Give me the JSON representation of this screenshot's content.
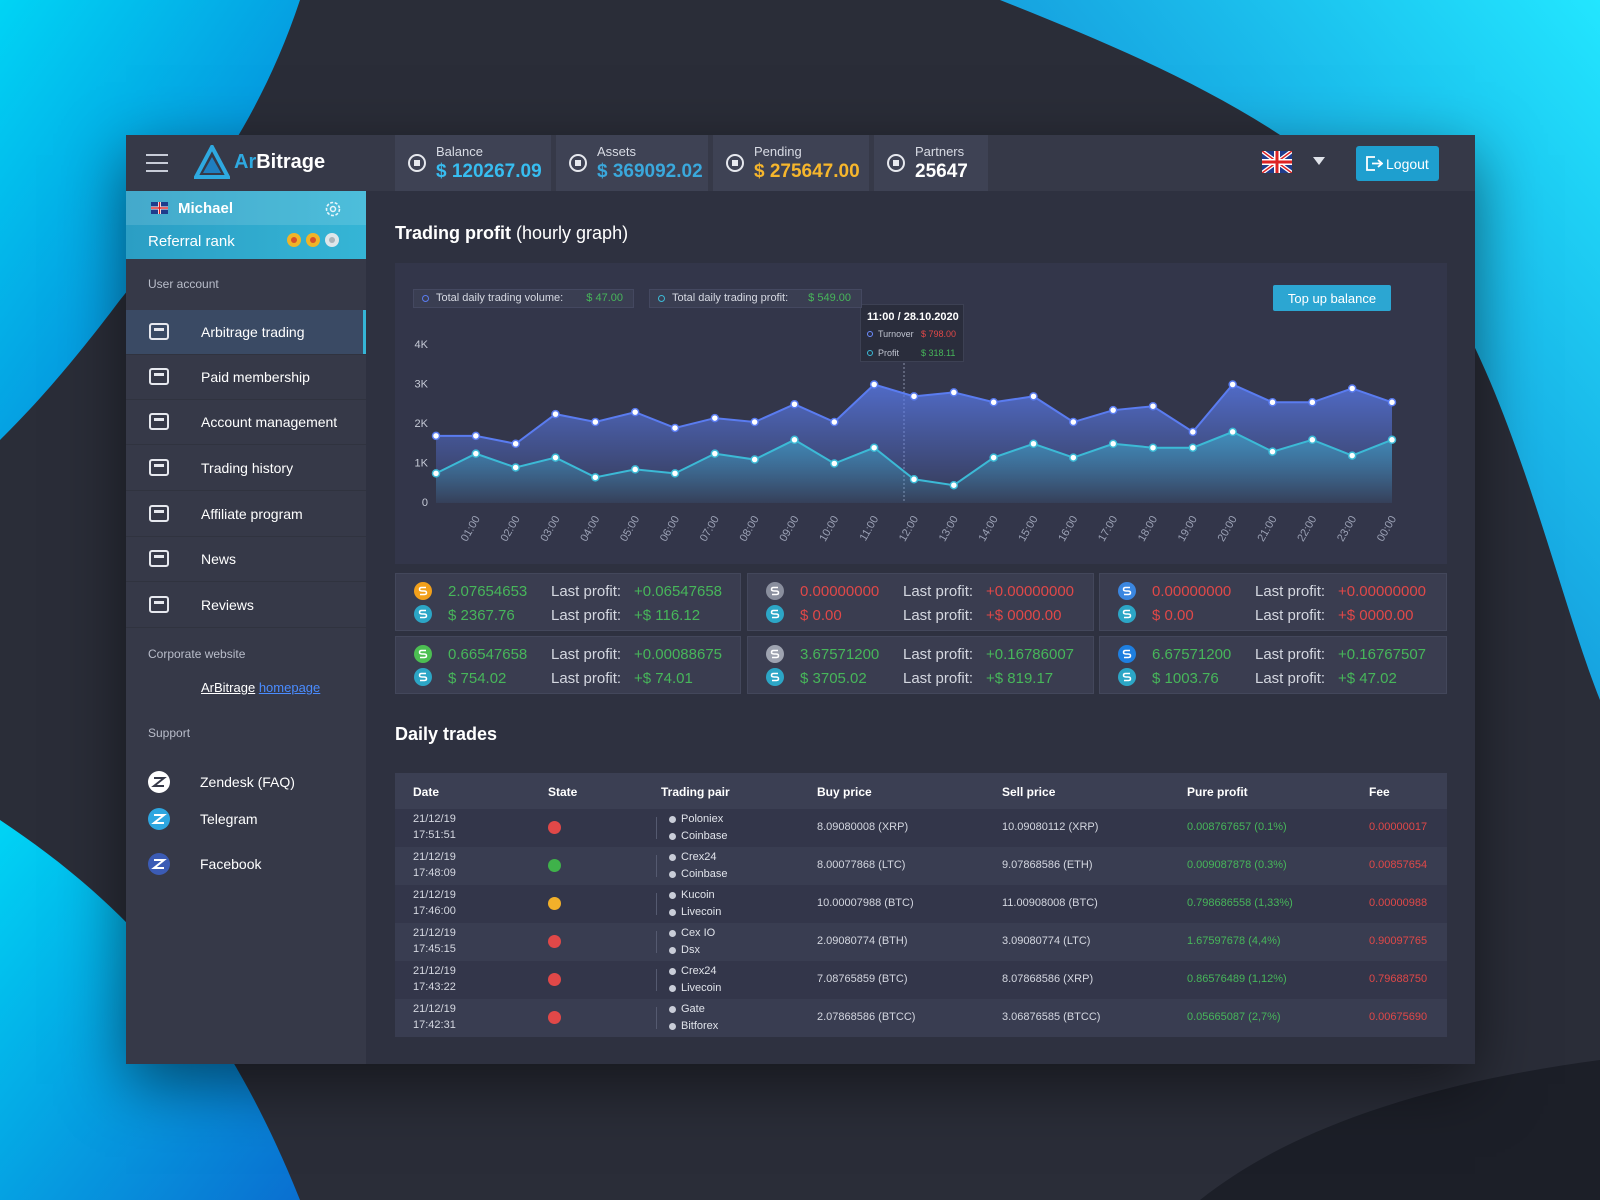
{
  "header": {
    "logo_parts": [
      "Ar",
      "Bitrage"
    ],
    "stats": [
      {
        "label": "Balance",
        "value": "$ 120267.09",
        "color": "#37bdf0"
      },
      {
        "label": "Assets",
        "value": "$ 369092.02",
        "color": "#3aa8dc"
      },
      {
        "label": "Pending",
        "value": "$ 275647.00",
        "color": "#f6b62c"
      },
      {
        "label": "Partners",
        "value": "25647",
        "color": "#ffffff"
      }
    ],
    "logout": "Logout"
  },
  "sidebar": {
    "user": "Michael",
    "rank_label": "Referral rank",
    "account_title": "User account",
    "menu": [
      "Arbitrage trading",
      "Paid membership",
      "Account management",
      "Trading history",
      "Affiliate program",
      "News",
      "Reviews"
    ],
    "active": 0,
    "corporate_title": "Corporate website",
    "corporate_link": [
      "ArBitrage",
      "homepage"
    ],
    "support_title": "Support",
    "support": [
      {
        "label": "Zendesk (FAQ)",
        "color": "#ffffff"
      },
      {
        "label": "Telegram",
        "color": "#2ea6e0"
      },
      {
        "label": "Facebook",
        "color": "#3b5bb5"
      }
    ]
  },
  "button": "Top up balance",
  "chart_data": {
    "type": "area",
    "title": "Trading profit",
    "subtitle": "(hourly graph)",
    "categories": [
      null,
      "01:00",
      "02:00",
      "03:00",
      "04:00",
      "05:00",
      "06:00",
      "07:00",
      "08:00",
      "09:00",
      "10:00",
      "11:00",
      "12:00",
      "13:00",
      "14:00",
      "15:00",
      "16:00",
      "17:00",
      "18:00",
      "19:00",
      "20:00",
      "21:00",
      "22:00",
      "23:00",
      "00:00"
    ],
    "series": [
      {
        "name": "Total daily trading volume:",
        "color": "#5a7cf0",
        "values": [
          1700,
          1700,
          1500,
          2250,
          2050,
          2300,
          1900,
          2150,
          2050,
          2500,
          2050,
          3000,
          2700,
          2800,
          2550,
          2700,
          2050,
          2350,
          2450,
          1800,
          3000,
          2550,
          2550,
          2900,
          2550
        ]
      },
      {
        "name": "Total daily trading profit:",
        "color": "#3cbad6",
        "values": [
          750,
          1250,
          900,
          1150,
          650,
          850,
          750,
          1250,
          1100,
          1600,
          1000,
          1400,
          600,
          450,
          1150,
          1500,
          1150,
          1500,
          1400,
          1400,
          1800,
          1300,
          1600,
          1200,
          1600
        ]
      }
    ],
    "legend_values": [
      "$ 47.00",
      "$ 549.00"
    ],
    "ylim": [
      0,
      4000
    ],
    "yticks": [
      0,
      {
        "value": 1000,
        "label": "1K"
      },
      {
        "value": 2000,
        "label": "2K"
      },
      {
        "value": 3000,
        "label": "3K"
      },
      {
        "value": 4000,
        "label": "4K"
      }
    ],
    "tooltip": {
      "title": "11:00 / 28.10.2020",
      "rows": [
        {
          "name": "Turnover",
          "value": "$ 798.00",
          "color": "#e04848",
          "dot": "#6c8cff"
        },
        {
          "name": "Profit",
          "value": "$ 318.11",
          "color": "#47b65a",
          "dot": "#3cbad6"
        }
      ]
    }
  },
  "cards": [
    {
      "icon_color": "#f2a01b",
      "tone": "#47b65a",
      "coin": "2.07654653",
      "coin_label": "Last profit:",
      "coin_profit": "+0.06547658",
      "usd": "$ 2367.76",
      "usd_label": "Last profit:",
      "usd_profit": "+$ 116.12"
    },
    {
      "icon_color": "#8a8f9e",
      "tone": "#e04848",
      "coin": "0.00000000",
      "coin_label": "Last profit:",
      "coin_profit": "+0.00000000",
      "usd": "$ 0.00",
      "usd_label": "Last profit:",
      "usd_profit": "+$ 0000.00"
    },
    {
      "icon_color": "#3a86e0",
      "tone": "#e04848",
      "coin": "0.00000000",
      "coin_label": "Last profit:",
      "coin_profit": "+0.00000000",
      "usd": "$ 0.00",
      "usd_label": "Last profit:",
      "usd_profit": "+$ 0000.00"
    },
    {
      "icon_color": "#4cbf52",
      "tone": "#47b65a",
      "coin": "0.66547658",
      "coin_label": "Last profit:",
      "coin_profit": "+0.00088675",
      "usd": "$ 754.02",
      "usd_label": "Last profit:",
      "usd_profit": "+$ 74.01"
    },
    {
      "icon_color": "#9ea3b0",
      "tone": "#47b65a",
      "coin": "3.67571200",
      "coin_label": "Last profit:",
      "coin_profit": "+0.16786007",
      "usd": "$ 3705.02",
      "usd_label": "Last profit:",
      "usd_profit": "+$ 819.17"
    },
    {
      "icon_color": "#1e7fe0",
      "tone": "#47b65a",
      "coin": "6.67571200",
      "coin_label": "Last profit:",
      "coin_profit": "+0.16767507",
      "usd": "$ 1003.76",
      "usd_label": "Last profit:",
      "usd_profit": "+$ 47.02"
    }
  ],
  "table": {
    "title": "Daily trades",
    "headers": [
      "Date",
      "State",
      "Trading pair",
      "Buy price",
      "Sell price",
      "Pure profit",
      "Fee"
    ],
    "rows": [
      {
        "date": "21/12/19",
        "time": "17:51:51",
        "state": "#e04848",
        "pair": [
          "Poloniex",
          "Coinbase"
        ],
        "buy": "8.09080008 (XRP)",
        "sell": "10.09080112 (XRP)",
        "profit": "0.008767657 (0.1%)",
        "fee": "0.00000017"
      },
      {
        "date": "21/12/19",
        "time": "17:48:09",
        "state": "#3fb24a",
        "pair": [
          "Crex24",
          "Coinbase"
        ],
        "buy": "8.00077868 (LTC)",
        "sell": "9.07868586 (ETH)",
        "profit": "0.009087878 (0.3%)",
        "fee": "0.00857654"
      },
      {
        "date": "21/12/19",
        "time": "17:46:00",
        "state": "#f2b02a",
        "pair": [
          "Kucoin",
          "Livecoin"
        ],
        "buy": "10.00007988 (BTC)",
        "sell": "11.00908008 (BTC)",
        "profit": "0.798686558 (1,33%)",
        "fee": "0.00000988"
      },
      {
        "date": "21/12/19",
        "time": "17:45:15",
        "state": "#e04848",
        "pair": [
          "Cex IO",
          "Dsx"
        ],
        "buy": "2.09080774 (BTH)",
        "sell": "3.09080774 (LTC)",
        "profit": "1.67597678 (4,4%)",
        "fee": "0.90097765"
      },
      {
        "date": "21/12/19",
        "time": "17:43:22",
        "state": "#e04848",
        "pair": [
          "Crex24",
          "Livecoin"
        ],
        "buy": "7.08765859 (BTC)",
        "sell": "8.07868586 (XRP)",
        "profit": "0.86576489 (1,12%)",
        "fee": "0.79688750"
      },
      {
        "date": "21/12/19",
        "time": "17:42:31",
        "state": "#e04848",
        "pair": [
          "Gate",
          "Bitforex"
        ],
        "buy": "2.07868586 (BTCC)",
        "sell": "3.06876585 (BTCC)",
        "profit": "0.05665087 (2,7%)",
        "fee": "0.00675690"
      }
    ]
  }
}
